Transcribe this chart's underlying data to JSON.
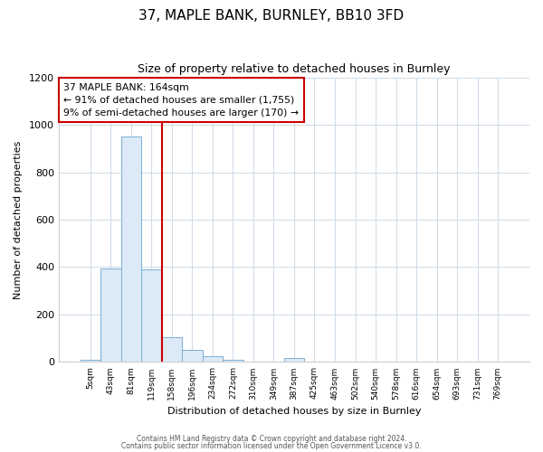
{
  "title1": "37, MAPLE BANK, BURNLEY, BB10 3FD",
  "title2": "Size of property relative to detached houses in Burnley",
  "xlabel": "Distribution of detached houses by size in Burnley",
  "ylabel": "Number of detached properties",
  "categories": [
    "5sqm",
    "43sqm",
    "81sqm",
    "119sqm",
    "158sqm",
    "196sqm",
    "234sqm",
    "272sqm",
    "310sqm",
    "349sqm",
    "387sqm",
    "425sqm",
    "463sqm",
    "502sqm",
    "540sqm",
    "578sqm",
    "616sqm",
    "654sqm",
    "693sqm",
    "731sqm",
    "769sqm"
  ],
  "values": [
    10,
    395,
    950,
    390,
    105,
    50,
    25,
    10,
    0,
    0,
    15,
    0,
    0,
    0,
    0,
    0,
    0,
    0,
    0,
    0,
    0
  ],
  "bar_color": "#dce9f7",
  "bar_edge_color": "#7bafd4",
  "red_line_x": 3.5,
  "annotation_line1": "37 MAPLE BANK: 164sqm",
  "annotation_line2": "← 91% of detached houses are smaller (1,755)",
  "annotation_line3": "9% of semi-detached houses are larger (170) →",
  "annotation_box_color": "#ffffff",
  "annotation_edge_color": "#cc0000",
  "vline_color": "#cc0000",
  "ylim": [
    0,
    1200
  ],
  "yticks": [
    0,
    200,
    400,
    600,
    800,
    1000,
    1200
  ],
  "footer1": "Contains HM Land Registry data © Crown copyright and database right 2024.",
  "footer2": "Contains public sector information licensed under the Open Government Licence v3.0.",
  "background_color": "#ffffff",
  "plot_bg_color": "#ffffff",
  "grid_color": "#d0dce8"
}
